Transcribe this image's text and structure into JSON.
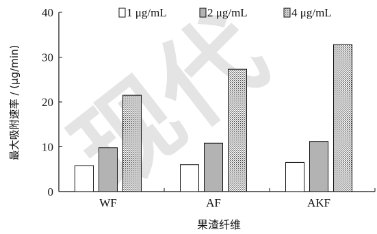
{
  "watermark": "现代",
  "chart_data": {
    "type": "bar",
    "xlabel": "果渣纤维",
    "ylabel": "最大吸附速率 / (μg/min)",
    "categories": [
      "WF",
      "AF",
      "AKF"
    ],
    "ylim": [
      0,
      40
    ],
    "yticks": [
      0,
      10,
      20,
      30,
      40
    ],
    "grid": false,
    "legend_position": "top",
    "series": [
      {
        "name": "1 μg/mL",
        "values": [
          5.8,
          6.0,
          6.5
        ],
        "fill": "#ffffff",
        "pattern": "none"
      },
      {
        "name": "2 μg/mL",
        "values": [
          9.8,
          10.8,
          11.2
        ],
        "fill": "#b3b3b3",
        "pattern": "none"
      },
      {
        "name": "4 μg/mL",
        "values": [
          21.5,
          27.3,
          32.8
        ],
        "fill": "#ffffff",
        "pattern": "dots"
      }
    ]
  }
}
